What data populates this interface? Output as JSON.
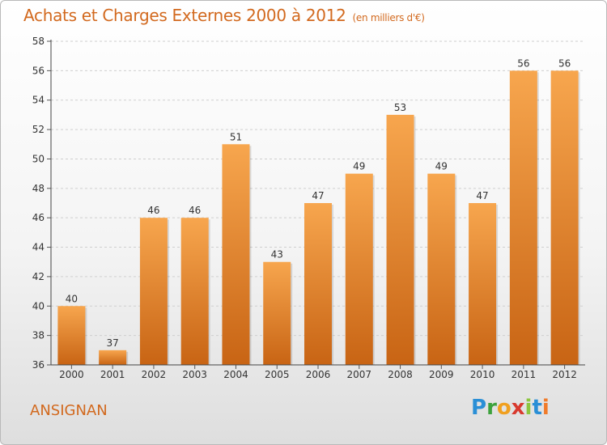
{
  "header": {
    "title": "Achats et Charges Externes 2000 à 2012",
    "unit": "(en milliers d'€)"
  },
  "footer": {
    "place": "ANSIGNAN",
    "logo": [
      "P",
      "r",
      "o",
      "x",
      "i",
      "t",
      "i"
    ]
  },
  "colors": {
    "accent": "#d2691e",
    "bar_top": "#f7a64e",
    "bar_bottom": "#c86414"
  },
  "chart_data": {
    "type": "bar",
    "title": "Achats et Charges Externes 2000 à 2012",
    "subtitle": "(en milliers d'€)",
    "categories": [
      "2000",
      "2001",
      "2002",
      "2003",
      "2004",
      "2005",
      "2006",
      "2007",
      "2008",
      "2009",
      "2010",
      "2011",
      "2012"
    ],
    "values": [
      40,
      37,
      46,
      46,
      51,
      43,
      47,
      49,
      53,
      49,
      47,
      56,
      56
    ],
    "ylim": [
      36,
      58
    ],
    "yticks": [
      36,
      38,
      40,
      42,
      44,
      46,
      48,
      50,
      52,
      54,
      56,
      58
    ],
    "grid": "y-dashed",
    "legend": "none"
  }
}
